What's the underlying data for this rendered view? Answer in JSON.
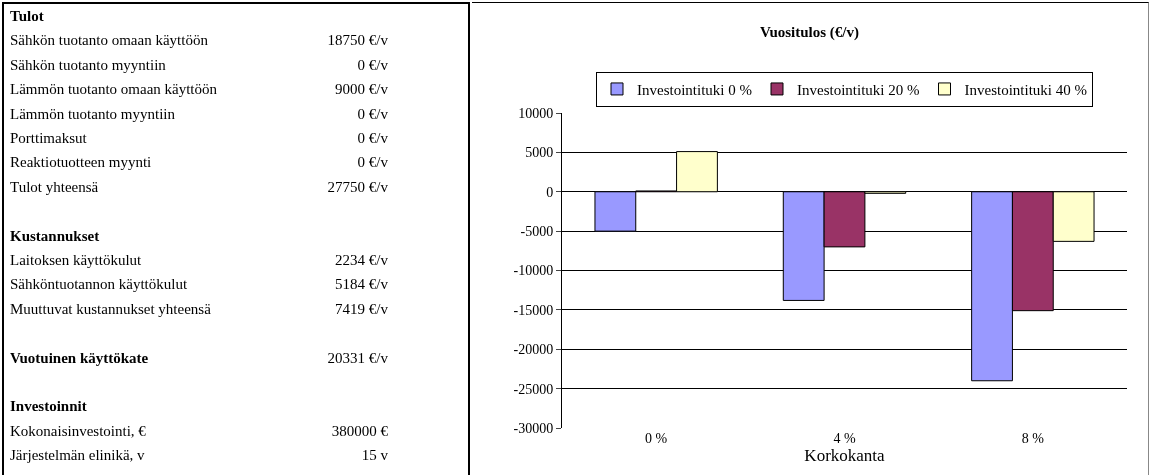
{
  "chart_data": [
    {
      "type": "other",
      "annotations": [
        "Tulot",
        "Sähkön tuotanto omaan käyttöön",
        "18750 €/v",
        "Sähkön tuotanto myyntiin",
        "0 €/v",
        "Lämmön tuotanto omaan käyttöön",
        "9000 €/v",
        "Lämmön tuotanto myyntiin",
        "0 €/v",
        "Porttimaksut",
        "0 €/v",
        "Reaktiotuotteen myynti",
        "0 €/v",
        "Tulot yhteensä",
        "27750 €/v",
        "Kustannukset",
        "Laitoksen käyttökulut",
        "2234 €/v",
        "Sähköntuotannon käyttökulut",
        "5184 €/v",
        "Muuttuvat kustannukset yhteensä",
        "7419 €/v",
        "Vuotuinen käyttökate",
        "20331 €/v",
        "Investoinnit",
        "Kokonaisinvestointi, €",
        "380000 €",
        "Järjestelmän elinikä, v",
        "15 v"
      ]
    },
    {
      "type": "bar",
      "title": "Vuositulos (€/v)",
      "xlabel": "Korkokanta",
      "categories": [
        "0 %",
        "4 %",
        "8 %"
      ],
      "series": [
        {
          "name": "Investointituki 0 %",
          "color": "#9999ff",
          "values": [
            -5000,
            -13800,
            -24000
          ]
        },
        {
          "name": "Investointituki 20 %",
          "color": "#993366",
          "values": [
            100,
            -7000,
            -15100
          ]
        },
        {
          "name": "Investointituki 40 %",
          "color": "#ffffcc",
          "values": [
            5100,
            -200,
            -6300
          ]
        }
      ],
      "ylim": [
        -30000,
        10000
      ],
      "yticks": [
        -30000,
        -25000,
        -20000,
        -15000,
        -10000,
        -5000,
        0,
        5000,
        10000
      ],
      "grid": "y",
      "legend": "top"
    }
  ]
}
